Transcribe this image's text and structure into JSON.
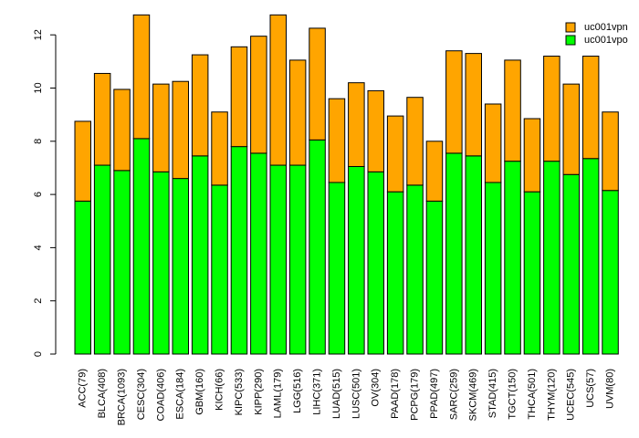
{
  "chart_data": {
    "type": "bar",
    "stacked": true,
    "title": "",
    "xlabel": "",
    "ylabel": "",
    "ylim": [
      0,
      12.8
    ],
    "yticks": [
      0,
      2,
      4,
      6,
      8,
      10,
      12
    ],
    "legend_position": "top-right",
    "categories": [
      "ACC(79)",
      "BLCA(408)",
      "BRCA(1093)",
      "CESC(304)",
      "COAD(406)",
      "ESCA(184)",
      "GBM(160)",
      "KICH(66)",
      "KIPC(533)",
      "KIPP(290)",
      "LAML(179)",
      "LGG(516)",
      "LIHC(371)",
      "LUAD(515)",
      "LUSC(501)",
      "OV(304)",
      "PAAD(178)",
      "PCPG(179)",
      "PPAD(497)",
      "SARC(259)",
      "SKCM(469)",
      "STAD(415)",
      "TGCT(150)",
      "THCA(501)",
      "THYM(120)",
      "UCEC(545)",
      "UCS(57)",
      "UVM(80)"
    ],
    "series": [
      {
        "name": "uc001vpo",
        "color": "#00ff00",
        "values": [
          5.75,
          7.1,
          6.9,
          8.1,
          6.85,
          6.6,
          7.45,
          6.35,
          7.8,
          7.55,
          7.1,
          7.1,
          8.05,
          6.45,
          7.05,
          6.85,
          6.1,
          6.35,
          5.75,
          7.55,
          7.45,
          6.45,
          7.25,
          6.1,
          7.25,
          6.75,
          7.35,
          6.15
        ]
      },
      {
        "name": "uc001vpn",
        "color": "#ffa500",
        "values": [
          3.0,
          3.45,
          3.05,
          4.65,
          3.3,
          3.65,
          3.8,
          2.75,
          3.75,
          4.4,
          5.65,
          3.95,
          4.2,
          3.15,
          3.15,
          3.05,
          2.85,
          3.3,
          2.25,
          3.85,
          3.85,
          2.95,
          3.8,
          2.75,
          3.95,
          3.4,
          3.85,
          2.95
        ]
      }
    ]
  }
}
